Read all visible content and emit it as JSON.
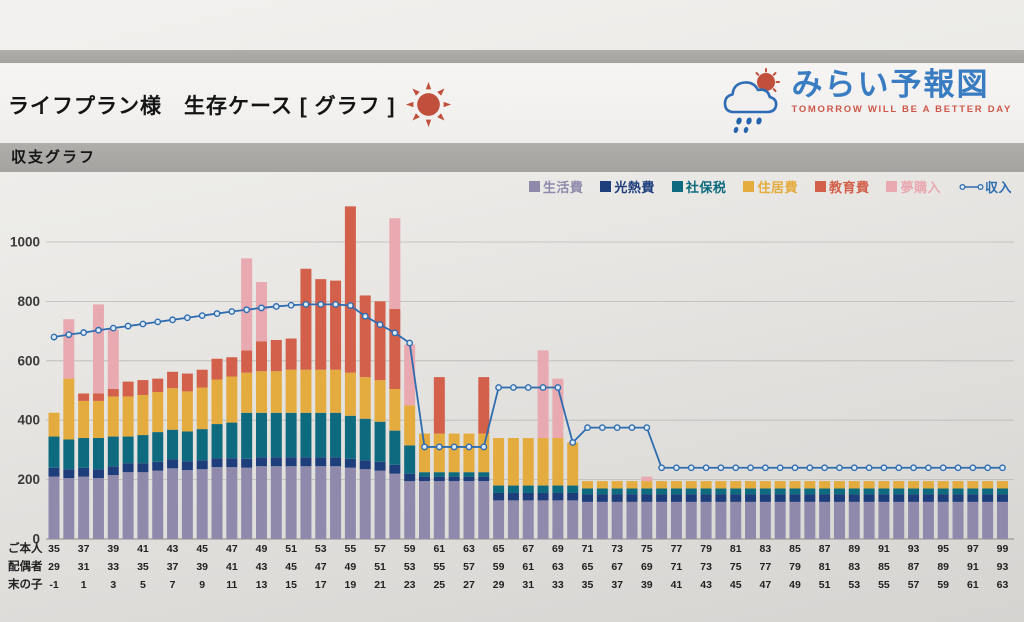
{
  "header": {
    "title": "ライフプラン様　生存ケース [ グラフ ]",
    "section_title": "収支グラフ",
    "logo": {
      "name": "みらい予報図",
      "tagline": "TOMORROW WILL BE A BETTER DAY"
    }
  },
  "colors": {
    "band_gray": "#a9a6a3",
    "paper": "#eceae7",
    "logo_blue": "#3a7cc2",
    "logo_red": "#cd584a",
    "sun_red": "#c0503c",
    "grid": "#bbb8b5"
  },
  "chart_data": {
    "type": "stacked-bar-with-line",
    "title": "収支グラフ",
    "grid": true,
    "legend_position": "top-right",
    "y_ticks": [
      0,
      200,
      400,
      600,
      800,
      1000
    ],
    "ylim": [
      0,
      1150
    ],
    "x_years": {
      "start": 35,
      "end": 99,
      "step": 1,
      "note": "one bar per year of ご本人 age; tick labels every 2 years"
    },
    "x_tick_rows": [
      {
        "label": "ご本人",
        "ticks": [
          35,
          37,
          39,
          41,
          43,
          45,
          47,
          49,
          51,
          53,
          55,
          57,
          59,
          61,
          63,
          65,
          67,
          69,
          71,
          73,
          75,
          77,
          79,
          81,
          83,
          85,
          87,
          89,
          91,
          93,
          95,
          97,
          99
        ]
      },
      {
        "label": "配偶者",
        "ticks": [
          29,
          31,
          33,
          35,
          37,
          39,
          41,
          43,
          45,
          47,
          49,
          51,
          53,
          55,
          57,
          59,
          61,
          63,
          65,
          67,
          69,
          71,
          73,
          75,
          77,
          79,
          81,
          83,
          85,
          87,
          89,
          91,
          93
        ]
      },
      {
        "label": "末の子",
        "ticks": [
          -1,
          1,
          3,
          5,
          7,
          9,
          11,
          13,
          15,
          17,
          19,
          21,
          23,
          25,
          27,
          29,
          31,
          33,
          35,
          37,
          39,
          41,
          43,
          45,
          47,
          49,
          51,
          53,
          55,
          57,
          59,
          61,
          63
        ]
      }
    ],
    "bar_series": [
      {
        "key": "seikatsu",
        "name": "生活費",
        "color": "#8f8aab",
        "values": [
          210,
          205,
          210,
          205,
          215,
          225,
          225,
          230,
          238,
          232,
          235,
          242,
          242,
          240,
          245,
          245,
          245,
          245,
          245,
          245,
          240,
          235,
          230,
          220,
          195,
          195,
          195,
          195,
          195,
          195,
          130,
          130,
          130,
          130,
          130,
          130,
          125,
          125,
          125,
          125,
          125,
          125,
          125,
          125,
          125,
          125,
          125,
          125,
          125,
          125,
          125,
          125,
          125,
          125,
          125,
          125,
          125,
          125,
          125,
          125,
          125,
          125,
          125,
          125,
          125
        ]
      },
      {
        "key": "konetsu",
        "name": "光熱費",
        "color": "#1e3d7b",
        "values": [
          30,
          30,
          30,
          30,
          30,
          30,
          30,
          30,
          30,
          30,
          30,
          30,
          30,
          30,
          30,
          30,
          30,
          30,
          30,
          30,
          30,
          30,
          30,
          30,
          25,
          15,
          15,
          15,
          15,
          15,
          25,
          25,
          25,
          25,
          25,
          25,
          25,
          25,
          25,
          25,
          25,
          25,
          25,
          25,
          25,
          25,
          25,
          25,
          25,
          25,
          25,
          25,
          25,
          25,
          25,
          25,
          25,
          25,
          25,
          25,
          25,
          25,
          25,
          25,
          25
        ]
      },
      {
        "key": "shahozei",
        "name": "社保税",
        "color": "#0e6a7e",
        "values": [
          105,
          100,
          100,
          105,
          100,
          90,
          95,
          100,
          100,
          100,
          105,
          115,
          120,
          155,
          150,
          150,
          150,
          150,
          150,
          150,
          145,
          140,
          135,
          115,
          95,
          15,
          15,
          15,
          15,
          15,
          25,
          25,
          25,
          25,
          25,
          25,
          20,
          20,
          20,
          20,
          20,
          20,
          20,
          20,
          20,
          20,
          20,
          20,
          20,
          20,
          20,
          20,
          20,
          20,
          20,
          20,
          20,
          20,
          20,
          20,
          20,
          20,
          20,
          20,
          20
        ]
      },
      {
        "key": "jukyo",
        "name": "住居費",
        "color": "#e4ab3f",
        "values": [
          80,
          205,
          125,
          125,
          135,
          135,
          135,
          135,
          140,
          135,
          140,
          150,
          155,
          135,
          140,
          140,
          145,
          145,
          145,
          145,
          145,
          140,
          140,
          140,
          135,
          130,
          130,
          130,
          130,
          130,
          160,
          160,
          160,
          160,
          160,
          145,
          25,
          25,
          25,
          25,
          25,
          25,
          25,
          25,
          25,
          25,
          25,
          25,
          25,
          25,
          25,
          25,
          25,
          25,
          25,
          25,
          25,
          25,
          25,
          25,
          25,
          25,
          25,
          25,
          25
        ]
      },
      {
        "key": "kyoiku",
        "name": "教育費",
        "color": "#d2604a",
        "values": [
          0,
          0,
          25,
          25,
          25,
          50,
          50,
          45,
          55,
          60,
          60,
          70,
          65,
          75,
          100,
          105,
          105,
          340,
          305,
          300,
          560,
          275,
          265,
          270,
          0,
          0,
          190,
          0,
          0,
          190,
          0,
          0,
          0,
          0,
          0,
          0,
          0,
          0,
          0,
          0,
          0,
          0,
          0,
          0,
          0,
          0,
          0,
          0,
          0,
          0,
          0,
          0,
          0,
          0,
          0,
          0,
          0,
          0,
          0,
          0,
          0,
          0,
          0,
          0,
          0
        ]
      },
      {
        "key": "yume",
        "name": "夢購入",
        "color": "#e9a9b0",
        "values": [
          0,
          200,
          0,
          300,
          200,
          0,
          0,
          0,
          0,
          0,
          0,
          0,
          0,
          310,
          200,
          0,
          0,
          0,
          0,
          0,
          0,
          0,
          0,
          305,
          205,
          0,
          0,
          0,
          0,
          0,
          0,
          0,
          0,
          295,
          200,
          0,
          0,
          0,
          0,
          0,
          15,
          0,
          0,
          0,
          0,
          0,
          0,
          0,
          0,
          0,
          0,
          0,
          0,
          0,
          0,
          0,
          0,
          0,
          0,
          0,
          0,
          0,
          0,
          0,
          0
        ]
      }
    ],
    "line_series": {
      "key": "income",
      "name": "収入",
      "color": "#2e6cb0",
      "marker": "circle",
      "values": [
        680,
        688,
        695,
        703,
        710,
        717,
        724,
        731,
        738,
        745,
        752,
        759,
        766,
        772,
        778,
        783,
        787,
        790,
        790,
        790,
        786,
        750,
        722,
        694,
        660,
        310,
        310,
        310,
        310,
        310,
        510,
        510,
        510,
        510,
        510,
        325,
        375,
        375,
        375,
        375,
        375,
        240,
        240,
        240,
        240,
        240,
        240,
        240,
        240,
        240,
        240,
        240,
        240,
        240,
        240,
        240,
        240,
        240,
        240,
        240,
        240,
        240,
        240,
        240,
        240
      ]
    }
  }
}
